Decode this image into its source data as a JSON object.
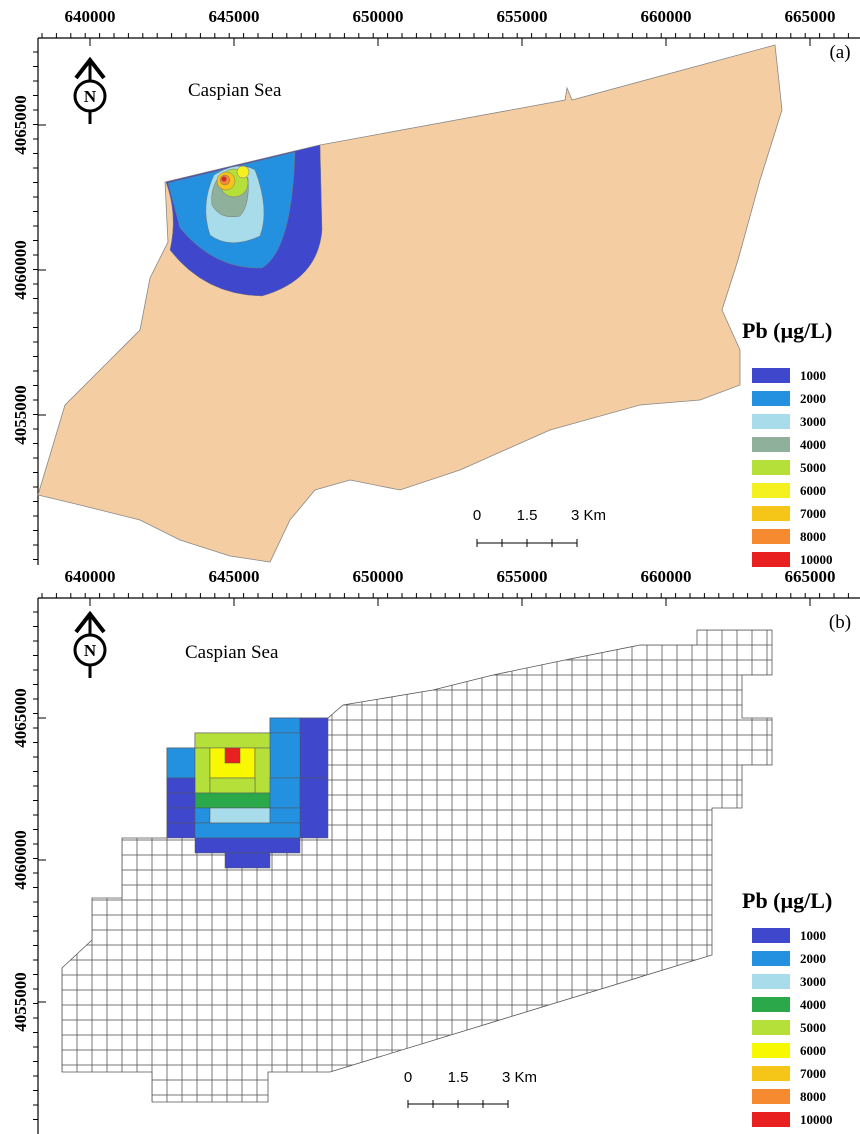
{
  "panels": [
    {
      "label": "(a)",
      "sea_label": "Caspian Sea",
      "north": "N",
      "x_ticks": [
        640000,
        645000,
        650000,
        655000,
        660000,
        665000
      ],
      "y_ticks": [
        4055000,
        4060000,
        4065000
      ],
      "legend": {
        "title": "Pb (µg/L)",
        "items": [
          {
            "label": "1000",
            "color": "#3f48cc"
          },
          {
            "label": "2000",
            "color": "#2490e0"
          },
          {
            "label": "3000",
            "color": "#a8dcea"
          },
          {
            "label": "4000",
            "color": "#8fb09a"
          },
          {
            "label": "5000",
            "color": "#b5e03a"
          },
          {
            "label": "6000",
            "color": "#f5f020"
          },
          {
            "label": "7000",
            "color": "#f5c518"
          },
          {
            "label": "8000",
            "color": "#f58a30"
          },
          {
            "label": "10000",
            "color": "#e82020"
          }
        ]
      },
      "scale_bar": [
        "0",
        "1.5",
        "3 Km"
      ]
    },
    {
      "label": "(b)",
      "sea_label": "Caspian Sea",
      "north": "N",
      "x_ticks": [
        640000,
        645000,
        650000,
        655000,
        660000,
        665000
      ],
      "y_ticks": [
        4055000,
        4060000,
        4065000
      ],
      "legend": {
        "title": "Pb (µg/L)",
        "items": [
          {
            "label": "1000",
            "color": "#3f48cc"
          },
          {
            "label": "2000",
            "color": "#2490e0"
          },
          {
            "label": "3000",
            "color": "#a8dcea"
          },
          {
            "label": "4000",
            "color": "#2aa84a"
          },
          {
            "label": "5000",
            "color": "#b5e03a"
          },
          {
            "label": "6000",
            "color": "#f8f800"
          },
          {
            "label": "7000",
            "color": "#f5c518"
          },
          {
            "label": "8000",
            "color": "#f58a30"
          },
          {
            "label": "10000",
            "color": "#e82020"
          }
        ]
      },
      "scale_bar": [
        "0",
        "1.5",
        "3 Km"
      ]
    }
  ]
}
